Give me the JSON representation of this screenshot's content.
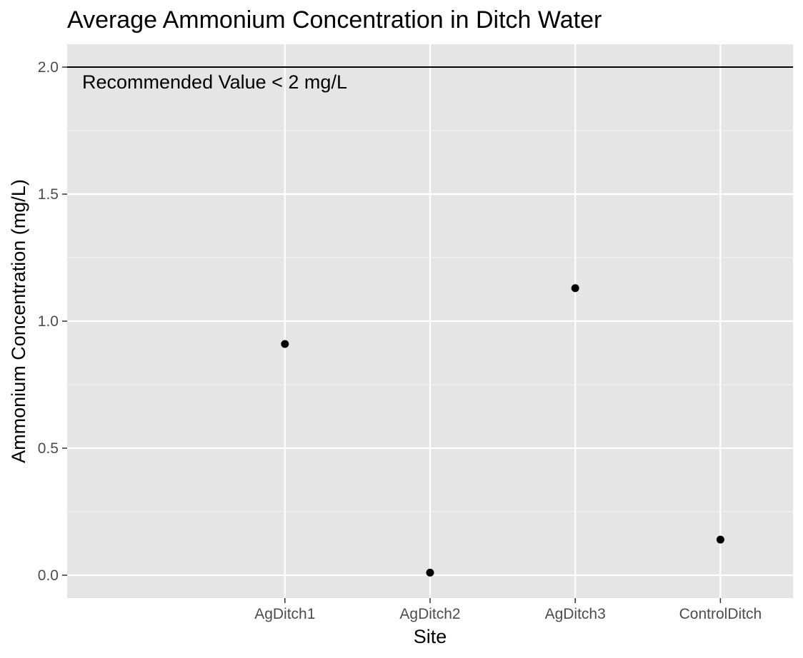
{
  "chart_data": {
    "type": "scatter",
    "title": "Average Ammonium Concentration in Ditch Water",
    "xlabel": "Site",
    "ylabel": "Ammonium Concentration (mg/L)",
    "categories": [
      "AgDitch1",
      "AgDitch2",
      "AgDitch3",
      "ControlDitch"
    ],
    "values": [
      0.91,
      0.01,
      1.13,
      0.14
    ],
    "ylim": [
      -0.09,
      2.09
    ],
    "yticks": [
      0.0,
      0.5,
      1.0,
      1.5,
      2.0
    ],
    "ytick_labels": [
      "0.0",
      "0.5",
      "1.0",
      "1.5",
      "2.0"
    ],
    "grid": true,
    "panel_color": "#e5e5e5",
    "point_color": "#000000",
    "reference_line": {
      "y": 2.0,
      "label": "Recommended Value < 2 mg/L",
      "color": "#000000"
    }
  }
}
